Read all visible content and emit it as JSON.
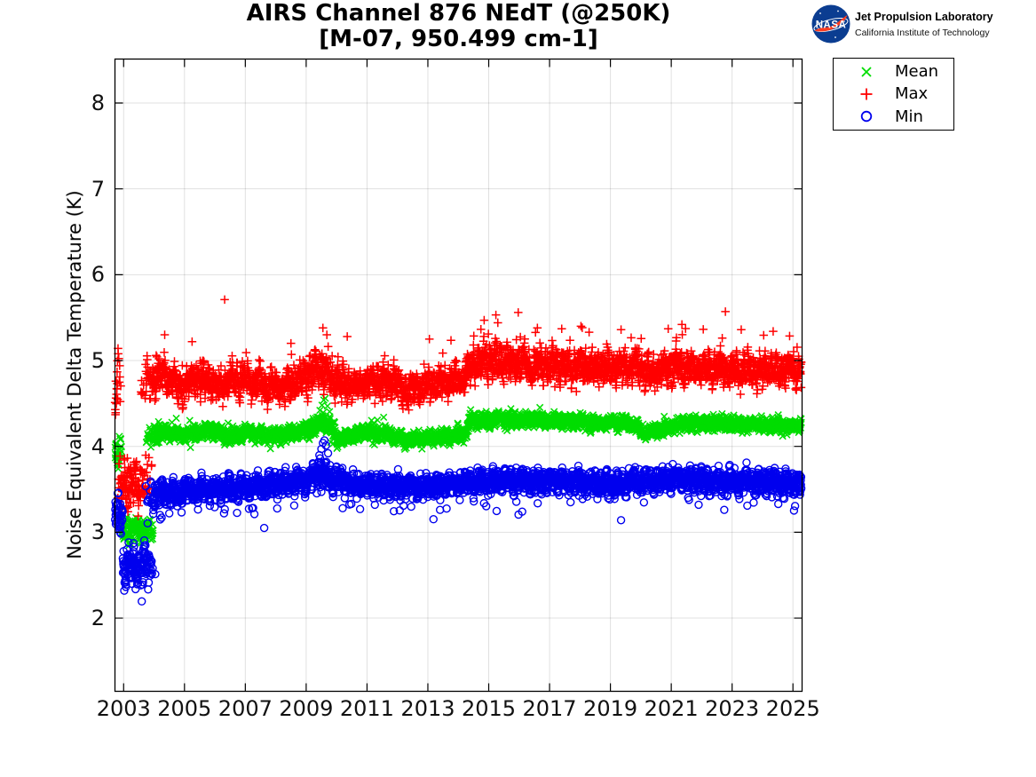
{
  "header": {
    "title_line1": "AIRS Channel 876 NEdT (@250K)",
    "title_line2": "[M-07, 950.499 cm-1]"
  },
  "branding": {
    "logo_label": "NASA",
    "org": "Jet Propulsion Laboratory",
    "sub": "California Institute of Technology",
    "logo_bg": "#0b3d91",
    "logo_swoosh": "#fc3d21"
  },
  "legend": {
    "items": [
      {
        "label": "Mean",
        "marker": "x",
        "color": "#00dd00"
      },
      {
        "label": "Max",
        "marker": "+",
        "color": "#ff0000"
      },
      {
        "label": "Min",
        "marker": "o",
        "color": "#0000ee"
      }
    ]
  },
  "chart_data": {
    "type": "scatter",
    "title": "AIRS Channel 876 NEdT (@250K) [M-07, 950.499 cm-1]",
    "xlabel": "",
    "ylabel": "Noise Equivalent Delta Temperature (K)",
    "xlim": [
      2002.715,
      2025.3
    ],
    "ylim": [
      1.147,
      8.512
    ],
    "xticks": [
      2003,
      2005,
      2007,
      2009,
      2011,
      2013,
      2015,
      2017,
      2019,
      2021,
      2023,
      2025
    ],
    "yticks": [
      2,
      3,
      4,
      5,
      6,
      7,
      8
    ],
    "grid": true,
    "legend_position": "outside-top-right",
    "sampling": {
      "start": 2002.72,
      "end": 2025.28,
      "step": 0.006
    },
    "series": [
      {
        "name": "Mean",
        "marker": "x",
        "color": "#00dd00",
        "tails": {
          "up_p": 0.01,
          "up_lo": 0.05,
          "up_hi": 0.15,
          "down_p": 0.01,
          "down_lo": 0.05,
          "down_hi": 0.12
        },
        "populations": [
          {
            "from": 2002.72,
            "to": 2002.95,
            "fade_out": 0.04,
            "keys": [
              [
                2002.72,
                3.92,
                0.15
              ]
            ]
          },
          {
            "from": 2002.93,
            "to": 2004.05,
            "fade_in": 0.03,
            "fade_out": 0.32,
            "keys": [
              [
                2002.93,
                3.04,
                0.13
              ]
            ]
          },
          {
            "from": 2003.68,
            "to": 2025.28,
            "fade_in": 0.34,
            "keys": [
              [
                2003.68,
                4.08,
                0.12
              ],
              [
                2004.35,
                4.17,
                0.09
              ],
              [
                2005.0,
                4.13,
                0.08
              ],
              [
                2005.8,
                4.18,
                0.08
              ],
              [
                2006.5,
                4.12,
                0.08
              ],
              [
                2007.1,
                4.17,
                0.08
              ],
              [
                2007.9,
                4.12,
                0.08
              ],
              [
                2008.7,
                4.16,
                0.09
              ],
              [
                2009.35,
                4.24,
                0.1
              ],
              [
                2009.6,
                4.3,
                0.12
              ],
              [
                2010.1,
                4.07,
                0.09
              ],
              [
                2010.9,
                4.16,
                0.08
              ],
              [
                2011.7,
                4.14,
                0.08
              ],
              [
                2012.3,
                4.06,
                0.08
              ],
              [
                2013.0,
                4.1,
                0.08
              ],
              [
                2013.7,
                4.11,
                0.08
              ],
              [
                2014.2,
                4.16,
                0.08
              ],
              [
                2014.45,
                4.3,
                0.08
              ],
              [
                2015.5,
                4.31,
                0.08
              ],
              [
                2016.5,
                4.31,
                0.08
              ],
              [
                2017.5,
                4.29,
                0.08
              ],
              [
                2018.5,
                4.27,
                0.08
              ],
              [
                2019.6,
                4.28,
                0.08
              ],
              [
                2020.15,
                4.16,
                0.07
              ],
              [
                2020.7,
                4.2,
                0.07
              ],
              [
                2021.3,
                4.26,
                0.08
              ],
              [
                2022.5,
                4.27,
                0.08
              ],
              [
                2023.5,
                4.25,
                0.08
              ],
              [
                2025.28,
                4.24,
                0.08
              ]
            ]
          }
        ],
        "outliers": [
          [
            2009.45,
            4.42
          ],
          [
            2009.52,
            4.48
          ],
          [
            2009.58,
            4.54
          ],
          [
            2009.63,
            4.56
          ],
          [
            2009.7,
            4.47
          ]
        ]
      },
      {
        "name": "Max",
        "marker": "+",
        "color": "#ff0000",
        "tails": {
          "up_p": 0.02,
          "up_lo": 0.1,
          "up_hi": 0.42,
          "down_p": 0.008,
          "down_lo": 0.08,
          "down_hi": 0.2
        },
        "populations": [
          {
            "from": 2002.72,
            "to": 2002.92,
            "fade_out": 0.05,
            "keys": [
              [
                2002.72,
                4.7,
                0.4
              ]
            ]
          },
          {
            "from": 2002.8,
            "to": 2004.0,
            "fade_in": 0.06,
            "fade_out": 0.4,
            "keys": [
              [
                2002.8,
                3.55,
                0.27
              ]
            ]
          },
          {
            "from": 2003.48,
            "to": 2025.28,
            "fade_in": 0.42,
            "keys": [
              [
                2003.48,
                4.72,
                0.2
              ],
              [
                2004.35,
                4.85,
                0.2
              ],
              [
                2004.9,
                4.68,
                0.18
              ],
              [
                2005.4,
                4.8,
                0.18
              ],
              [
                2006.1,
                4.7,
                0.18
              ],
              [
                2006.6,
                4.8,
                0.19
              ],
              [
                2007.1,
                4.8,
                0.19
              ],
              [
                2007.7,
                4.7,
                0.18
              ],
              [
                2008.3,
                4.68,
                0.18
              ],
              [
                2008.9,
                4.8,
                0.2
              ],
              [
                2009.5,
                4.92,
                0.22
              ],
              [
                2009.9,
                4.8,
                0.19
              ],
              [
                2010.5,
                4.7,
                0.18
              ],
              [
                2011.2,
                4.76,
                0.18
              ],
              [
                2011.8,
                4.76,
                0.18
              ],
              [
                2012.3,
                4.66,
                0.18
              ],
              [
                2012.9,
                4.7,
                0.18
              ],
              [
                2013.6,
                4.76,
                0.18
              ],
              [
                2014.2,
                4.8,
                0.18
              ],
              [
                2014.45,
                4.98,
                0.2
              ],
              [
                2015.5,
                4.98,
                0.2
              ],
              [
                2016.5,
                4.94,
                0.2
              ],
              [
                2017.5,
                4.94,
                0.19
              ],
              [
                2018.5,
                4.92,
                0.19
              ],
              [
                2019.5,
                4.93,
                0.19
              ],
              [
                2020.4,
                4.87,
                0.18
              ],
              [
                2021.2,
                4.93,
                0.19
              ],
              [
                2022.2,
                4.91,
                0.19
              ],
              [
                2023.2,
                4.89,
                0.19
              ],
              [
                2024.2,
                4.88,
                0.18
              ],
              [
                2025.28,
                4.88,
                0.18
              ]
            ]
          }
        ],
        "outliers": [
          [
            2006.32,
            5.71
          ],
          [
            2004.35,
            5.3
          ],
          [
            2005.25,
            5.22
          ],
          [
            2008.5,
            5.2
          ],
          [
            2009.55,
            5.38
          ],
          [
            2009.68,
            5.3
          ],
          [
            2010.35,
            5.28
          ],
          [
            2013.05,
            5.25
          ],
          [
            2014.85,
            5.47
          ],
          [
            2015.3,
            5.44
          ],
          [
            2015.97,
            5.56
          ],
          [
            2016.6,
            5.38
          ],
          [
            2017.4,
            5.37
          ],
          [
            2018.3,
            5.33
          ],
          [
            2019.35,
            5.36
          ],
          [
            2020.9,
            5.37
          ],
          [
            2021.35,
            5.42
          ],
          [
            2022.78,
            5.57
          ],
          [
            2023.3,
            5.36
          ],
          [
            2024.35,
            5.34
          ]
        ]
      },
      {
        "name": "Min",
        "marker": "o",
        "color": "#0000ee",
        "tails": {
          "up_p": 0.005,
          "up_lo": 0.05,
          "up_hi": 0.15,
          "down_p": 0.02,
          "down_lo": 0.08,
          "down_hi": 0.3
        },
        "populations": [
          {
            "from": 2002.72,
            "to": 2002.97,
            "fade_out": 0.05,
            "keys": [
              [
                2002.72,
                3.2,
                0.24
              ]
            ]
          },
          {
            "from": 2002.95,
            "to": 2004.1,
            "fade_in": 0.04,
            "fade_out": 0.36,
            "keys": [
              [
                2002.95,
                2.61,
                0.22
              ]
            ]
          },
          {
            "from": 2003.7,
            "to": 2025.28,
            "fade_in": 0.38,
            "keys": [
              [
                2003.7,
                3.45,
                0.2
              ],
              [
                2004.6,
                3.44,
                0.15
              ],
              [
                2005.2,
                3.5,
                0.13
              ],
              [
                2006.0,
                3.5,
                0.13
              ],
              [
                2007.0,
                3.52,
                0.13
              ],
              [
                2008.0,
                3.56,
                0.13
              ],
              [
                2009.0,
                3.61,
                0.13
              ],
              [
                2009.5,
                3.7,
                0.17
              ],
              [
                2009.85,
                3.62,
                0.13
              ],
              [
                2010.6,
                3.56,
                0.13
              ],
              [
                2011.5,
                3.54,
                0.13
              ],
              [
                2012.5,
                3.53,
                0.13
              ],
              [
                2013.5,
                3.54,
                0.13
              ],
              [
                2014.45,
                3.58,
                0.13
              ],
              [
                2015.5,
                3.61,
                0.13
              ],
              [
                2016.5,
                3.59,
                0.13
              ],
              [
                2017.5,
                3.59,
                0.13
              ],
              [
                2018.5,
                3.57,
                0.13
              ],
              [
                2019.5,
                3.58,
                0.13
              ],
              [
                2020.5,
                3.61,
                0.13
              ],
              [
                2021.5,
                3.62,
                0.13
              ],
              [
                2022.5,
                3.6,
                0.13
              ],
              [
                2023.5,
                3.59,
                0.13
              ],
              [
                2025.28,
                3.58,
                0.13
              ]
            ]
          }
        ],
        "outliers": [
          [
            2009.5,
            3.97
          ],
          [
            2009.55,
            4.04
          ],
          [
            2009.6,
            4.07
          ],
          [
            2009.65,
            4.01
          ],
          [
            2009.72,
            3.92
          ],
          [
            2004.25,
            3.17
          ],
          [
            2004.5,
            3.22
          ],
          [
            2006.3,
            3.22
          ],
          [
            2007.62,
            3.05
          ],
          [
            2010.2,
            3.28
          ],
          [
            2012.2,
            3.31
          ],
          [
            2013.4,
            3.26
          ],
          [
            2016.1,
            3.24
          ],
          [
            2019.35,
            3.14
          ],
          [
            2021.9,
            3.32
          ],
          [
            2023.5,
            3.31
          ]
        ]
      }
    ]
  }
}
